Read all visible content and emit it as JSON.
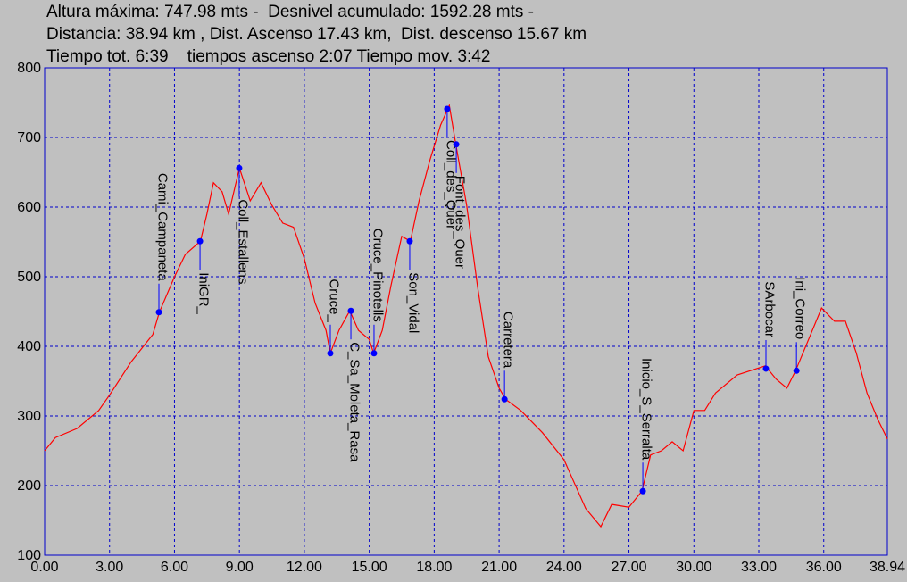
{
  "chart_data": {
    "type": "line",
    "title_lines": [
      "Altura máxima: 747.98 mts -  Desnivel acumulado: 1592.28 mts -",
      "Distancia: 38.94 km , Dist. Ascenso 17.43 km,  Dist. descenso 15.67 km",
      "Tiempo tot. 6:39    tiempos ascenso 2:07 Tiempo mov. 3:42"
    ],
    "x": [
      0,
      0.5,
      1.5,
      2.5,
      3.0,
      4.0,
      5.0,
      5.3,
      6.0,
      6.5,
      7.2,
      7.5,
      7.8,
      8.2,
      8.5,
      9.0,
      9.5,
      10.0,
      10.5,
      11.0,
      11.5,
      12.0,
      12.5,
      13.0,
      13.2,
      13.6,
      14.1,
      14.5,
      15.0,
      15.2,
      15.6,
      16.0,
      16.5,
      16.9,
      17.3,
      17.8,
      18.3,
      18.7,
      19.0,
      19.5,
      20.0,
      20.5,
      21.0,
      21.3,
      22.0,
      23.0,
      24.0,
      25.0,
      25.7,
      26.2,
      27.0,
      27.6,
      28.0,
      28.5,
      29.0,
      29.5,
      30.0,
      30.5,
      31.0,
      32.0,
      33.3,
      33.8,
      34.3,
      34.7,
      35.3,
      35.9,
      36.5,
      37.0,
      37.5,
      38.0,
      38.5,
      38.94
    ],
    "values": [
      250,
      269,
      282,
      308,
      330,
      378,
      417,
      449,
      500,
      532,
      551,
      590,
      635,
      622,
      590,
      656,
      609,
      635,
      603,
      577,
      571,
      526,
      462,
      423,
      390,
      423,
      451,
      423,
      410,
      390,
      423,
      487,
      558,
      551,
      609,
      667,
      718,
      746,
      690,
      603,
      487,
      385,
      340,
      324,
      308,
      276,
      237,
      167,
      141,
      173,
      169,
      192,
      244,
      250,
      263,
      250,
      308,
      308,
      333,
      359,
      372,
      353,
      340,
      365,
      410,
      455,
      436,
      436,
      391,
      333,
      295,
      267
    ],
    "color": "#ff0000",
    "waypoints": {
      "color": "#0000ff",
      "x": [
        5.28,
        7.18,
        8.99,
        13.2,
        14.15,
        15.22,
        16.87,
        18.6,
        19.02,
        21.25,
        27.64,
        33.33,
        34.74
      ],
      "values": [
        449,
        551,
        656,
        390,
        451,
        390,
        551,
        741,
        690,
        324,
        192,
        368,
        365
      ],
      "labels": [
        "Cami_Campaneta",
        "IniGR_",
        "Coll_Estallens",
        "Cruce_",
        "C_Sa_Moleta_Rasa",
        "Cruce_Pinotells",
        "Son_Vidal",
        "Coll_des_Quer",
        "Font_des_Quer",
        "Carretera",
        "Inicio_S_Serralta",
        "SArbocar",
        "Ini_Correo"
      ],
      "label_side": [
        "above",
        "below",
        "below",
        "above",
        "below",
        "above",
        "below",
        "below",
        "below",
        "above",
        "above",
        "above",
        "above"
      ]
    },
    "xlim": [
      0,
      38.94
    ],
    "xticks": [
      {
        "value": 0,
        "label": "0.00"
      },
      {
        "value": 3,
        "label": "3.00"
      },
      {
        "value": 6,
        "label": "6.00"
      },
      {
        "value": 9,
        "label": "9.00"
      },
      {
        "value": 12,
        "label": "12.00"
      },
      {
        "value": 15,
        "label": "15.00"
      },
      {
        "value": 18,
        "label": "18.00"
      },
      {
        "value": 21,
        "label": "21.00"
      },
      {
        "value": 24,
        "label": "24.00"
      },
      {
        "value": 27,
        "label": "27.00"
      },
      {
        "value": 30,
        "label": "30.00"
      },
      {
        "value": 33,
        "label": "33.00"
      },
      {
        "value": 36,
        "label": "36.00"
      },
      {
        "value": 38.94,
        "label": "38.94"
      }
    ],
    "ylim": [
      100,
      800
    ],
    "yticks": [
      100,
      200,
      300,
      400,
      500,
      600,
      700,
      800
    ],
    "grid": true,
    "grid_color": "#0000cc",
    "axis_color": "#0000cc"
  }
}
